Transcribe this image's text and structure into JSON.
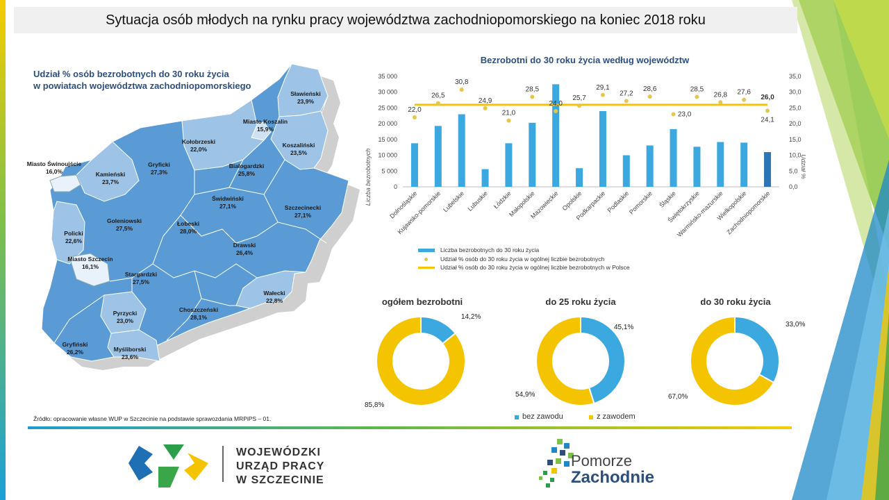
{
  "page": {
    "title": "Sytuacja osób młodych na rynku pracy województwa zachodniopomorskiego na koniec 2018 roku",
    "source": "Źródło: opracowanie własne WUP w Szczecinie na podstawie sprawozdania MRPiPS – 01."
  },
  "map": {
    "title_line1": "Udział % osób bezrobotnych do 30 roku życia",
    "title_line2": "w powiatach województwa zachodniopomorskiego",
    "regions": [
      {
        "name": "Sławieński",
        "value": "23,9%"
      },
      {
        "name": "Miasto Koszalin",
        "value": "15,9%"
      },
      {
        "name": "Koszaliński",
        "value": "23,5%"
      },
      {
        "name": "Kołobrzeski",
        "value": "22,0%"
      },
      {
        "name": "Białogardzki",
        "value": "25,8%"
      },
      {
        "name": "Gryficki",
        "value": "27,3%"
      },
      {
        "name": "Kamieński",
        "value": "23,7%"
      },
      {
        "name": "Miasto Świnoujście",
        "value": "16,0%"
      },
      {
        "name": "Świdwiński",
        "value": "27,1%"
      },
      {
        "name": "Szczecinecki",
        "value": "27,1%"
      },
      {
        "name": "Goleniowski",
        "value": "27,5%"
      },
      {
        "name": "Łobeski",
        "value": "28,0%"
      },
      {
        "name": "Policki",
        "value": "22,6%"
      },
      {
        "name": "Miasto Szczecin",
        "value": "16,1%"
      },
      {
        "name": "Drawski",
        "value": "26,4%"
      },
      {
        "name": "Stargardzki",
        "value": "27,5%"
      },
      {
        "name": "Wałecki",
        "value": "22,8%"
      },
      {
        "name": "Pyrzycki",
        "value": "23,0%"
      },
      {
        "name": "Choszczeński",
        "value": "28,1%"
      },
      {
        "name": "Gryfiński",
        "value": "26,2%"
      },
      {
        "name": "Myśliborski",
        "value": "23,6%"
      }
    ]
  },
  "colors": {
    "bar": "#3ba8df",
    "bar_highlight": "#2e75b6",
    "dot": "#e8c64a",
    "line": "#f4c400",
    "map_dark": "#5b9bd5",
    "map_light": "#9dc3e6"
  },
  "chart_data": [
    {
      "type": "bar",
      "title": "Bezrobotni do 30 roku życia według województw",
      "ylabel": "Liczba bezrobotnych",
      "y2label": "Udział %",
      "ylim": [
        0,
        35000
      ],
      "y2lim": [
        0,
        35
      ],
      "yticks": [
        "0",
        "5 000",
        "10 000",
        "15 000",
        "20 000",
        "25 000",
        "30 000",
        "35 000"
      ],
      "y2ticks": [
        "0,0",
        "5,0",
        "10,0",
        "15,0",
        "20,0",
        "25,0",
        "30,0",
        "35,0"
      ],
      "categories": [
        "Dolnośląskie",
        "Kujawsko-pomorskie",
        "Lubelskie",
        "Lubuskie",
        "Łódzkie",
        "Małopolskie",
        "Mazowieckie",
        "Opolskie",
        "Podkarpackie",
        "Podlaskie",
        "Pomorskie",
        "Śląskie",
        "Świętokrzyskie",
        "Warmińsko-mazurskie",
        "Wielkopolskie",
        "Zachodniopomorskie"
      ],
      "series": [
        {
          "name": "Liczba bezrobotnych do 30 roku życia",
          "type": "bar",
          "values": [
            13800,
            19300,
            23000,
            5600,
            13800,
            20300,
            32500,
            5900,
            24000,
            10000,
            13100,
            18300,
            12700,
            14200,
            14000,
            11000
          ]
        },
        {
          "name": "Udział % osób do 30 roku życia w ogólnej liczbie bezrobotnych",
          "type": "scatter",
          "values": [
            22.0,
            26.5,
            30.8,
            24.9,
            21.0,
            28.5,
            24.0,
            25.7,
            29.1,
            27.2,
            28.6,
            23.0,
            28.5,
            26.8,
            27.6,
            24.1
          ],
          "labels": [
            "22,0",
            "26,5",
            "30,8",
            "24,9",
            "21,0",
            "28,5",
            "24,0",
            "25,7",
            "29,1",
            "27,2",
            "28,6",
            "23,0",
            "28,5",
            "26,8",
            "27,6",
            "24,1"
          ]
        },
        {
          "name": "Udział % osób do 30 roku życia w ogólnej liczbie bezrobotnych w Polsce",
          "type": "line",
          "value": 26.0,
          "label": "26,0"
        }
      ]
    },
    {
      "type": "pie",
      "title": "ogółem bezrobotni",
      "slices": [
        {
          "value": 14.2,
          "label": "14,2%"
        },
        {
          "value": 85.8,
          "label": "85,8%"
        }
      ]
    },
    {
      "type": "pie",
      "title": "do 25 roku życia",
      "slices": [
        {
          "value": 45.1,
          "label": "45,1%"
        },
        {
          "value": 54.9,
          "label": "54,9%"
        }
      ]
    },
    {
      "type": "pie",
      "title": "do 30 roku życia",
      "slices": [
        {
          "value": 33.0,
          "label": "33,0%"
        },
        {
          "value": 67.0,
          "label": "67,0%"
        }
      ]
    }
  ],
  "donut_legend": {
    "bez_zawodu": "bez zawodu",
    "z_zawodem": "z zawodem"
  },
  "logos": {
    "wup_line1": "WOJEWÓDZKI",
    "wup_line2": "URZĄD PRACY",
    "wup_line3_w": "W",
    "wup_line3": "SZCZECINIE",
    "pomorze1": "Pomorze",
    "pomorze2": "Zachodnie"
  }
}
